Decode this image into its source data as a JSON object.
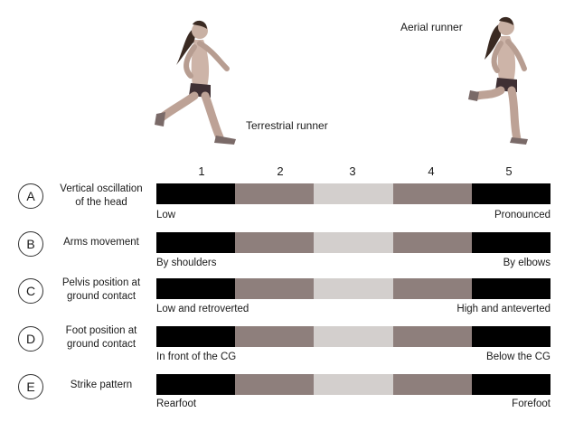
{
  "runners": {
    "terrestrial_label": "Terrestrial runner",
    "aerial_label": "Aerial runner"
  },
  "scale": [
    "1",
    "2",
    "3",
    "4",
    "5"
  ],
  "colors": {
    "level1": "#000000",
    "level2": "#8e7f7c",
    "level3": "#d3cfcd",
    "level4": "#8e7f7c",
    "level5": "#000000"
  },
  "rows": [
    {
      "letter": "A",
      "label_line1": "Vertical oscillation",
      "label_line2": "of the head",
      "left": "Low",
      "right": "Pronounced"
    },
    {
      "letter": "B",
      "label_line1": "Arms movement",
      "label_line2": "",
      "left": "By shoulders",
      "right": "By elbows"
    },
    {
      "letter": "C",
      "label_line1": "Pelvis position at",
      "label_line2": "ground contact",
      "left": "Low and retroverted",
      "right": "High and anteverted"
    },
    {
      "letter": "D",
      "label_line1": "Foot position at",
      "label_line2": "ground contact",
      "left": "In front of the CG",
      "right": "Below the CG"
    },
    {
      "letter": "E",
      "label_line1": "Strike pattern",
      "label_line2": "",
      "left": "Rearfoot",
      "right": "Forefoot"
    }
  ]
}
